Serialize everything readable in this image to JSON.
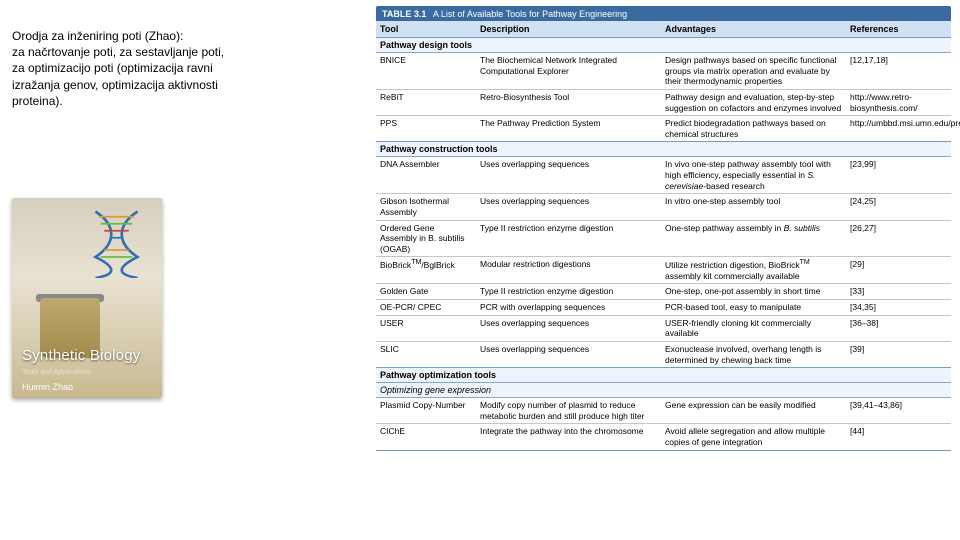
{
  "left": {
    "heading": "Orodja za inženiring poti (Zhao):\nza načrtovanje poti, za sestavljanje poti,\nza optimizacijo poti (optimizacija ravni\nizražanja genov, optimizacija aktivnosti\nproteina).",
    "book_title": "Synthetic Biology",
    "book_subtitle": "Tools and Applications",
    "book_author": "Huimin Zhao"
  },
  "colors": {
    "header_bg": "#3b6aa0",
    "colrow_bg": "#cfe1f2",
    "section_bg": "#eef4fb",
    "border": "#b9c9dd"
  },
  "table": {
    "caption_label": "TABLE 3.1",
    "caption_text": "A List of Available Tools for Pathway Engineering",
    "columns": [
      "Tool",
      "Description",
      "Advantages",
      "References"
    ],
    "sections": [
      {
        "title": "Pathway design tools",
        "rows": [
          {
            "tool": "BNICE",
            "desc": "The Biochemical Network Integrated Computational Explorer",
            "adv": "Design pathways based on specific functional groups via matrix operation and evaluate by their thermodynamic properties",
            "ref": "[12,17,18]"
          },
          {
            "tool": "ReBiT",
            "desc": "Retro-Biosynthesis Tool",
            "adv": "Pathway design and evaluation, step-by-step suggestion on cofactors and enzymes involved",
            "ref": "http://www.retro-biosynthesis.com/"
          },
          {
            "tool": "PPS",
            "desc": "The Pathway Prediction System",
            "adv": "Predict biodegradation pathways based on chemical structures",
            "ref": "http://umbbd.msi.umn.edu/predict/"
          }
        ]
      },
      {
        "title": "Pathway construction tools",
        "rows": [
          {
            "tool": "DNA Assembler",
            "desc": "Uses overlapping sequences",
            "adv": "In vivo one-step pathway assembly tool with high efficiency, especially essential in S. cerevisiae-based research",
            "ref": "[23,99]"
          },
          {
            "tool": "Gibson Isothermal Assembly",
            "desc": "Uses overlapping sequences",
            "adv": "In vitro one-step assembly tool",
            "ref": "[24,25]"
          },
          {
            "tool": "Ordered Gene Assembly in B. subtilis (OGAB)",
            "desc": "Type II restriction enzyme digestion",
            "adv": "One-step pathway assembly in B. subtilis",
            "ref": "[26,27]"
          },
          {
            "tool": "BioBrick™/BglBrick",
            "desc": "Modular restriction digestions",
            "adv": "Utilize restriction digestion, BioBrick™ assembly kit commercially available",
            "ref": "[29]"
          },
          {
            "tool": "Golden Gate",
            "desc": "Type II restriction enzyme digestion",
            "adv": "One-step, one-pot assembly in short time",
            "ref": "[33]"
          },
          {
            "tool": "OE-PCR/ CPEC",
            "desc": "PCR with overlapping sequences",
            "adv": "PCR-based tool, easy to manipulate",
            "ref": "[34,35]"
          },
          {
            "tool": "USER",
            "desc": "Uses overlapping sequences",
            "adv": "USER-friendly cloning kit commercially available",
            "ref": "[36–38]"
          },
          {
            "tool": "SLIC",
            "desc": "Uses overlapping sequences",
            "adv": "Exonuclease involved, overhang length is determined by chewing back time",
            "ref": "[39]"
          }
        ]
      },
      {
        "title": "Pathway optimization tools",
        "subtitle": "Optimizing gene expression",
        "rows": [
          {
            "tool": "Plasmid Copy-Number",
            "desc": "Modify copy number of plasmid to reduce metabolic burden and still produce high titer",
            "adv": "Gene expression can be easily modified",
            "ref": "[39,41–43,86]"
          },
          {
            "tool": "CIChE",
            "desc": "Integrate the pathway into the chromosome",
            "adv": "Avoid allele segregation and allow multiple copies of gene integration",
            "ref": "[44]"
          }
        ]
      }
    ]
  }
}
